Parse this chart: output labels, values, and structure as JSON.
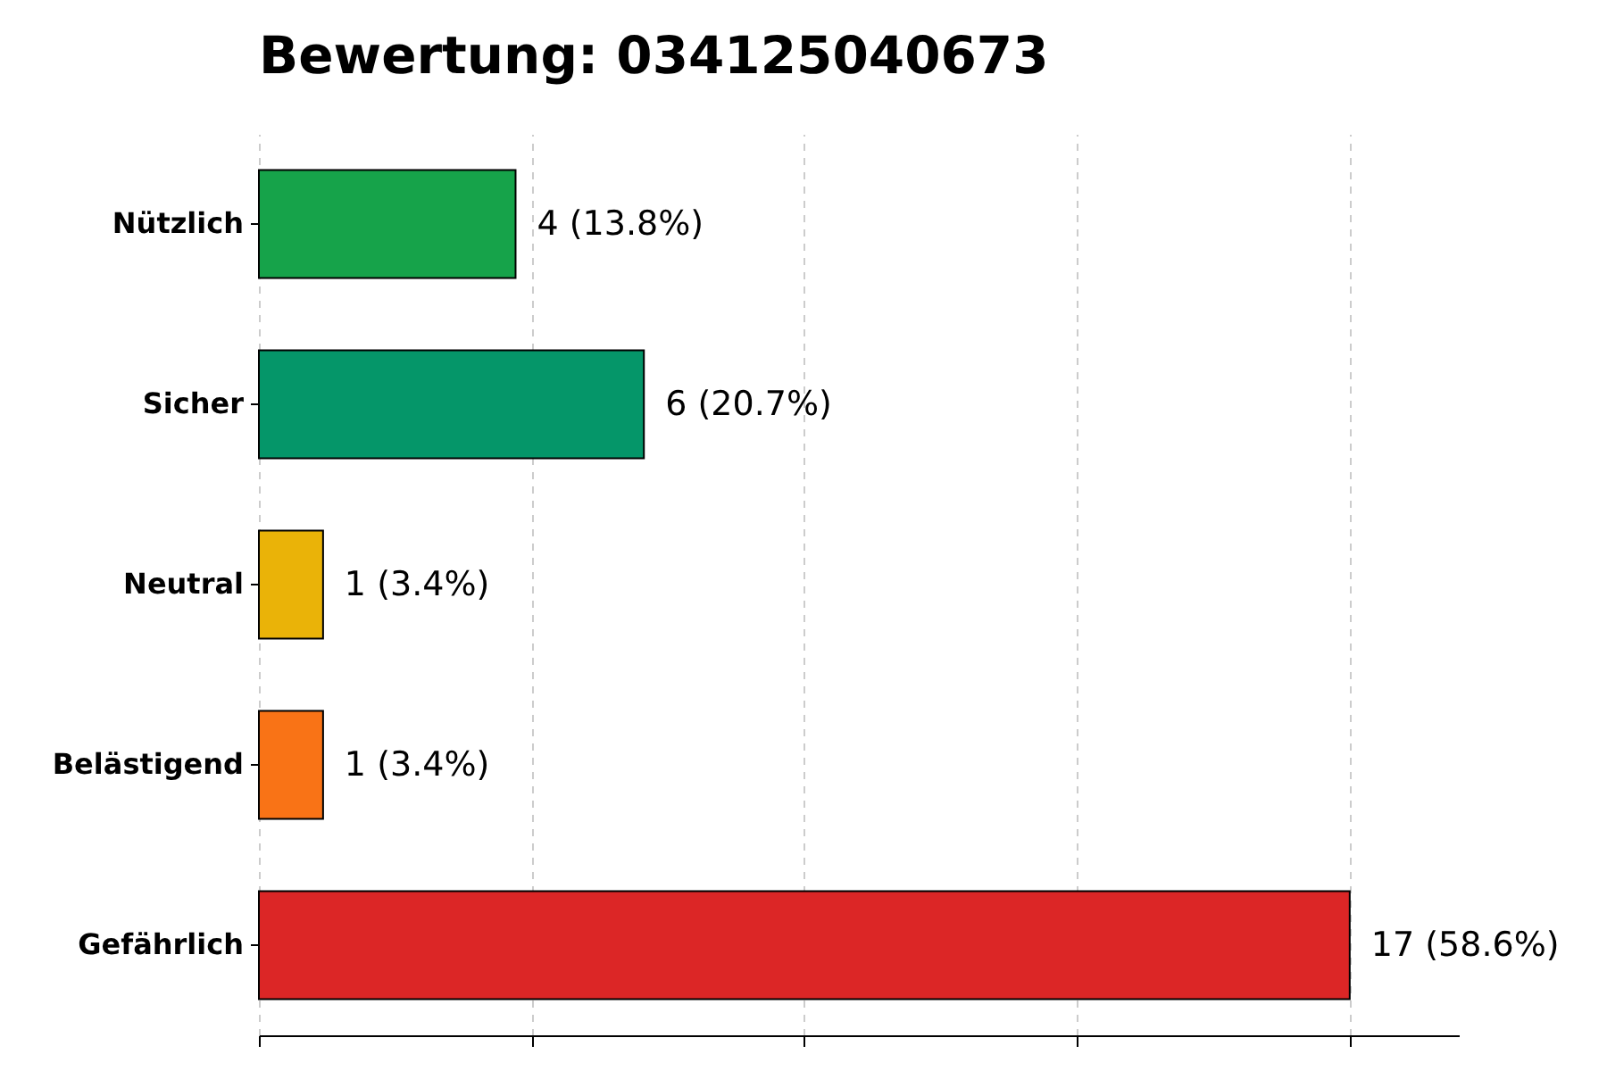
{
  "chart_data": {
    "type": "bar",
    "orientation": "horizontal",
    "title": "Bewertung: 034125040673",
    "categories": [
      "Nützlich",
      "Sicher",
      "Neutral",
      "Belästigend",
      "Gefährlich"
    ],
    "values": [
      4,
      6,
      1,
      1,
      17
    ],
    "colors": [
      "#16a34a",
      "#059669",
      "#eab308",
      "#f97316",
      "#dc2626"
    ],
    "value_labels": [
      "4 (13.8%)",
      "6 (20.7%)",
      "1 (3.4%)",
      "1 (3.4%)",
      "17 (58.6%)"
    ],
    "xlim": [
      0,
      18.7
    ],
    "xticks": [
      {
        "value": 0,
        "label": null
      },
      {
        "value": 4.25,
        "label": null
      },
      {
        "value": 8.5,
        "label": null
      },
      {
        "value": 12.75,
        "label": null
      },
      {
        "value": 17,
        "label": null
      }
    ],
    "grid": "x",
    "tick_labels": "y"
  }
}
